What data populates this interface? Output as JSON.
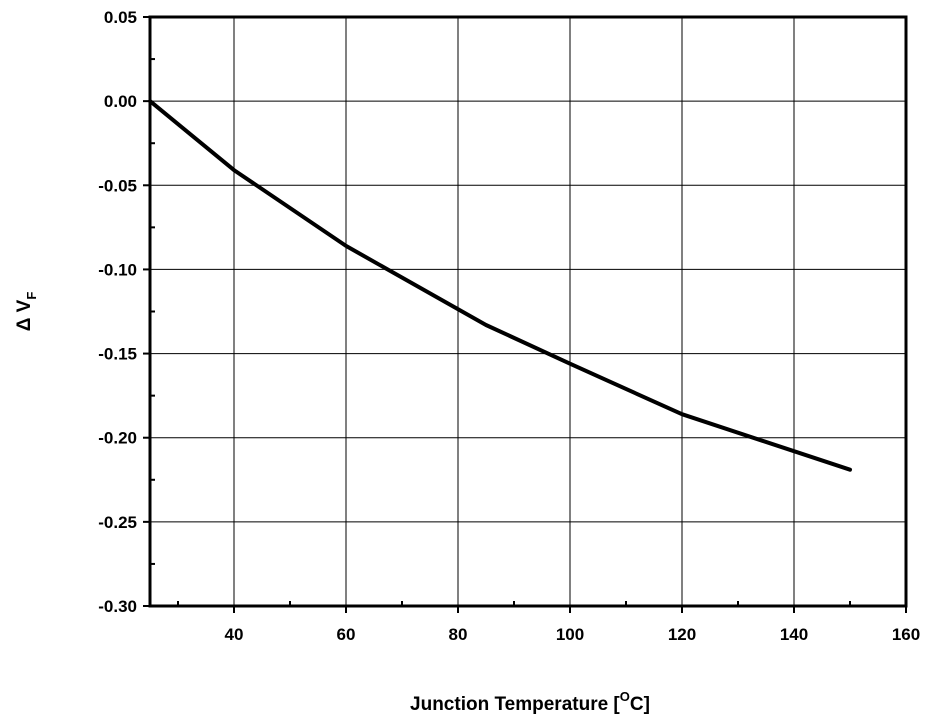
{
  "chart_data": {
    "type": "line",
    "xlabel": "Junction Temperature [°C]",
    "xlabel_parts": {
      "pre": "Junction Temperature [",
      "sup": "O",
      "post": "C]"
    },
    "ylabel": "Δ VF",
    "ylabel_parts": {
      "main": "Δ V",
      "sub": "F"
    },
    "xlim": [
      25,
      160
    ],
    "ylim": [
      -0.3,
      0.05
    ],
    "x_ticks": [
      40,
      60,
      80,
      100,
      120,
      140,
      160
    ],
    "x_tick_labels": [
      "40",
      "60",
      "80",
      "100",
      "120",
      "140",
      "160"
    ],
    "y_ticks": [
      0.05,
      0.0,
      -0.05,
      -0.1,
      -0.15,
      -0.2,
      -0.25,
      -0.3
    ],
    "y_tick_labels": [
      "0.05",
      "0.00",
      "-0.05",
      "-0.10",
      "-0.15",
      "-0.20",
      "-0.25",
      "-0.30"
    ],
    "grid": true,
    "series": [
      {
        "x": [
          25,
          40,
          60,
          85,
          100,
          120,
          140,
          150
        ],
        "y": [
          0.0,
          -0.041,
          -0.086,
          -0.133,
          -0.156,
          -0.186,
          -0.208,
          -0.219
        ]
      }
    ],
    "line_color": "#000000"
  }
}
